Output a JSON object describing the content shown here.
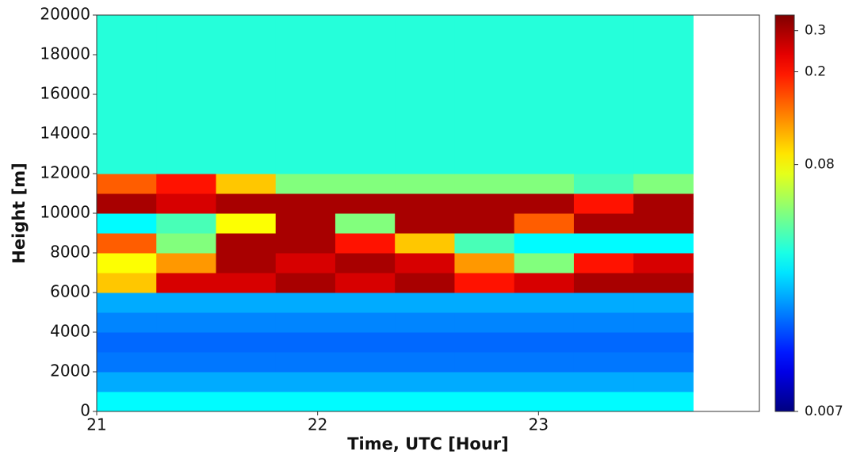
{
  "chart_data": {
    "type": "heatmap",
    "xlabel": "Time, UTC [Hour]",
    "ylabel": "Height [m]",
    "x_bins": [
      21,
      21.27,
      21.54,
      21.81,
      22.08,
      22.35,
      22.62,
      22.89,
      23.16,
      23.43,
      23.7
    ],
    "y_bins": [
      0,
      1000,
      2000,
      3000,
      4000,
      5000,
      6000,
      7000,
      8000,
      9000,
      10000,
      11000,
      12000,
      13000,
      14000,
      15000,
      16000,
      17000,
      18000,
      19000,
      20000
    ],
    "values": [
      [
        0.03,
        0.03,
        0.03,
        0.03,
        0.03,
        0.03,
        0.03,
        0.03,
        0.03,
        0.03
      ],
      [
        0.022,
        0.022,
        0.022,
        0.022,
        0.022,
        0.022,
        0.022,
        0.022,
        0.022,
        0.022
      ],
      [
        0.018,
        0.018,
        0.018,
        0.018,
        0.018,
        0.018,
        0.018,
        0.018,
        0.018,
        0.018
      ],
      [
        0.017,
        0.017,
        0.017,
        0.017,
        0.017,
        0.017,
        0.017,
        0.017,
        0.017,
        0.017
      ],
      [
        0.019,
        0.019,
        0.019,
        0.019,
        0.019,
        0.019,
        0.019,
        0.019,
        0.019,
        0.019
      ],
      [
        0.022,
        0.022,
        0.022,
        0.022,
        0.022,
        0.022,
        0.022,
        0.022,
        0.022,
        0.022
      ],
      [
        0.1,
        0.25,
        0.25,
        0.3,
        0.25,
        0.3,
        0.2,
        0.25,
        0.3,
        0.3
      ],
      [
        0.08,
        0.12,
        0.3,
        0.25,
        0.3,
        0.25,
        0.12,
        0.05,
        0.2,
        0.25
      ],
      [
        0.15,
        0.05,
        0.3,
        0.3,
        0.2,
        0.1,
        0.04,
        0.03,
        0.03,
        0.03
      ],
      [
        0.03,
        0.04,
        0.08,
        0.3,
        0.05,
        0.3,
        0.3,
        0.15,
        0.3,
        0.3
      ],
      [
        0.3,
        0.25,
        0.3,
        0.3,
        0.3,
        0.3,
        0.3,
        0.3,
        0.2,
        0.3
      ],
      [
        0.15,
        0.2,
        0.1,
        0.05,
        0.05,
        0.05,
        0.05,
        0.05,
        0.04,
        0.05
      ],
      [
        0.035,
        0.035,
        0.035,
        0.035,
        0.035,
        0.035,
        0.035,
        0.035,
        0.035,
        0.035
      ],
      [
        0.035,
        0.035,
        0.035,
        0.035,
        0.035,
        0.035,
        0.035,
        0.035,
        0.035,
        0.035
      ],
      [
        0.035,
        0.035,
        0.035,
        0.035,
        0.035,
        0.035,
        0.035,
        0.035,
        0.035,
        0.035
      ],
      [
        0.035,
        0.035,
        0.035,
        0.035,
        0.035,
        0.035,
        0.035,
        0.035,
        0.035,
        0.035
      ],
      [
        0.035,
        0.035,
        0.035,
        0.035,
        0.035,
        0.035,
        0.035,
        0.035,
        0.035,
        0.035
      ],
      [
        0.035,
        0.035,
        0.035,
        0.035,
        0.035,
        0.035,
        0.035,
        0.035,
        0.035,
        0.035
      ],
      [
        0.035,
        0.035,
        0.035,
        0.035,
        0.035,
        0.035,
        0.035,
        0.035,
        0.035,
        0.035
      ],
      [
        0.035,
        0.035,
        0.035,
        0.035,
        0.035,
        0.035,
        0.035,
        0.035,
        0.035,
        0.035
      ]
    ],
    "xlim": [
      21,
      24
    ],
    "ylim": [
      0,
      20000
    ],
    "xticks": [
      21,
      22,
      23
    ],
    "yticks": [
      0,
      2000,
      4000,
      6000,
      8000,
      10000,
      12000,
      14000,
      16000,
      18000,
      20000
    ],
    "colorbar": {
      "lim": [
        0.007,
        0.35
      ],
      "ticks": [
        0.007,
        0.08,
        0.2,
        0.3
      ],
      "scale": "log",
      "colormap": "jet"
    }
  }
}
